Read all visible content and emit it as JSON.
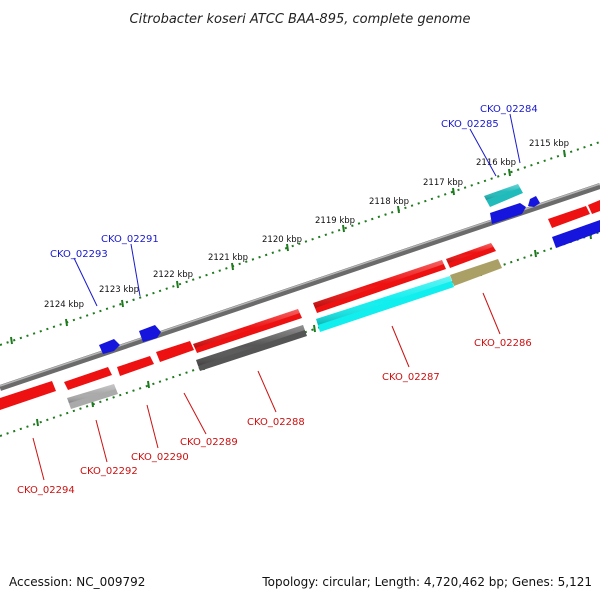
{
  "title": "Citrobacter koseri ATCC BAA-895, complete genome",
  "footer": {
    "accession": "Accession: NC_009792",
    "topology": "Topology: circular; Length: 4,720,462 bp; Genes: 5,121"
  },
  "colors": {
    "backbone": "#7a7a7a",
    "scale_track": "#1e7a1e",
    "label_blue": "#1a1acc",
    "label_red": "#cc1111",
    "gene_red": "#ee1111",
    "gene_blue": "#1515dd",
    "gene_cyan": "#11eeee",
    "gene_teal": "#22bbbb",
    "gene_dark_gray": "#555555",
    "gene_light_gray": "#aaaaaa",
    "gene_olive": "#aaa066"
  },
  "scale": {
    "unit": "kbp",
    "ticks": [
      "2115 kbp",
      "2116 kbp",
      "2117 kbp",
      "2118 kbp",
      "2119 kbp",
      "2120 kbp",
      "2121 kbp",
      "2122 kbp",
      "2123 kbp",
      "2124 kbp"
    ]
  },
  "gene_labels": {
    "blue": [
      "CKO_02284",
      "CKO_02285",
      "CKO_02291",
      "CKO_02293"
    ],
    "red": [
      "CKO_02286",
      "CKO_02287",
      "CKO_02288",
      "CKO_02289",
      "CKO_02290",
      "CKO_02292",
      "CKO_02294"
    ]
  },
  "legend": {
    "strand_plus_color": "blue",
    "strand_minus_color": "red"
  }
}
